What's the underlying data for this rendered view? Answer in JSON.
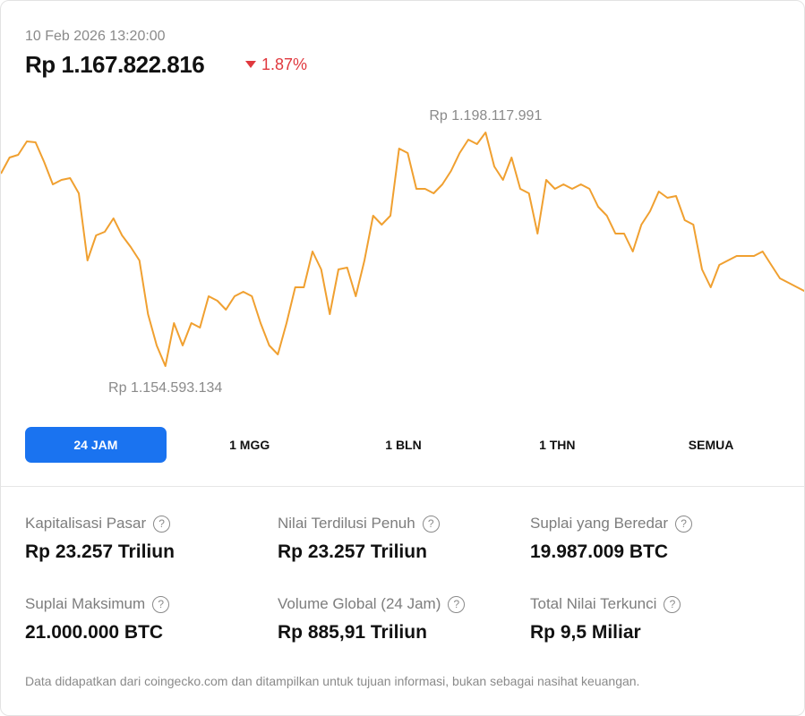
{
  "header": {
    "timestamp": "10 Feb 2026 13:20:00",
    "price": "Rp 1.167.822.816",
    "change": "1.87%"
  },
  "chart_data": {
    "type": "line",
    "color": "#f0a030",
    "ylim": [
      1154593134,
      1198117991
    ],
    "annotations": {
      "max": {
        "value": 1198117991,
        "label": "Rp 1.198.117.991"
      },
      "min": {
        "value": 1154593134,
        "label": "Rp 1.154.593.134"
      }
    },
    "values": [
      1190446964,
      1193448680,
      1193948966,
      1196450396,
      1196283634,
      1192614870,
      1188445820,
      1189279630,
      1189613154,
      1186778200,
      1174271050,
      1178940386,
      1179607434,
      1182108864,
      1178940386,
      1176772480,
      1174271050,
      1164265330,
      1158428660,
      1154593134,
      1162597710,
      1158428660,
      1162597710,
      1161763900,
      1167600570,
      1166766760,
      1165099140,
      1167600570,
      1168434380,
      1167600570,
      1162597710,
      1158428660,
      1156761040,
      1162597710,
      1169268190,
      1169268190,
      1175938670,
      1172603430,
      1164265330,
      1172603430,
      1172936954,
      1167600570,
      1174271050,
      1182609150,
      1180941530,
      1182609150,
      1195116300,
      1194282490,
      1187612010,
      1187612010,
      1186778200,
      1188445820,
      1190947250,
      1194282490,
      1196783920,
      1195950110,
      1198117991,
      1191781060,
      1189279630,
      1193448680,
      1187612010,
      1186778200,
      1179273910,
      1189279630,
      1187612010,
      1188445820,
      1187612010,
      1188445820,
      1187612010,
      1184276770,
      1182609150,
      1179273910,
      1179273910,
      1175938670,
      1180941530,
      1183442960,
      1187111724,
      1185944390,
      1186277914,
      1181775340,
      1180941530,
      1172603430,
      1169268190,
      1173437240,
      1174271050,
      1175104860,
      1175104860,
      1175104860,
      1175938670,
      1173437240,
      1170935810,
      1170102000,
      1169268190,
      1168434380
    ]
  },
  "ranges": [
    "24 JAM",
    "1 MGG",
    "1 BLN",
    "1 THN",
    "SEMUA"
  ],
  "stats": [
    {
      "label": "Kapitalisasi Pasar",
      "value": "Rp 23.257 Triliun"
    },
    {
      "label": "Nilai Terdilusi Penuh",
      "value": "Rp 23.257 Triliun"
    },
    {
      "label": "Suplai yang Beredar",
      "value": "19.987.009 BTC"
    },
    {
      "label": "Suplai Maksimum",
      "value": "21.000.000 BTC"
    },
    {
      "label": "Volume Global (24 Jam)",
      "value": "Rp 885,91 Triliun"
    },
    {
      "label": "Total Nilai Terkunci",
      "value": "Rp 9,5 Miliar"
    }
  ],
  "footer": "Data didapatkan dari coingecko.com dan ditampilkan untuk tujuan informasi, bukan sebagai nasihat keuangan."
}
